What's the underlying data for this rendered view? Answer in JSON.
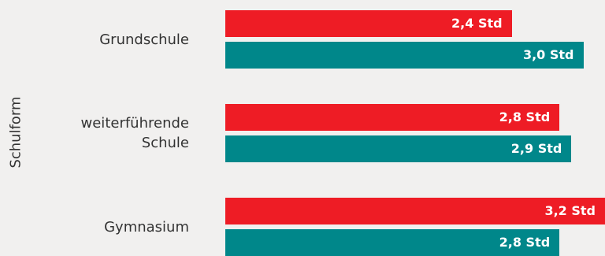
{
  "chart_data": {
    "type": "bar",
    "orientation": "horizontal",
    "ylabel": "Schulform",
    "categories": [
      "Grundschule",
      "weiterführende Schule",
      "Gymnasium"
    ],
    "category_lines": [
      [
        "Grundschule"
      ],
      [
        "weiterführende",
        "Schule"
      ],
      [
        "Gymnasium"
      ]
    ],
    "series": [
      {
        "color": "#ee1c25",
        "values": [
          2.4,
          2.8,
          3.2
        ],
        "labels": [
          "2,4 Std",
          "2,8 Std",
          "3,2 Std"
        ]
      },
      {
        "color": "#00878a",
        "values": [
          3.0,
          2.9,
          2.8
        ],
        "labels": [
          "3,0 Std",
          "2,9 Std",
          "2,8 Std"
        ]
      }
    ],
    "grid": false,
    "legend": "none"
  }
}
